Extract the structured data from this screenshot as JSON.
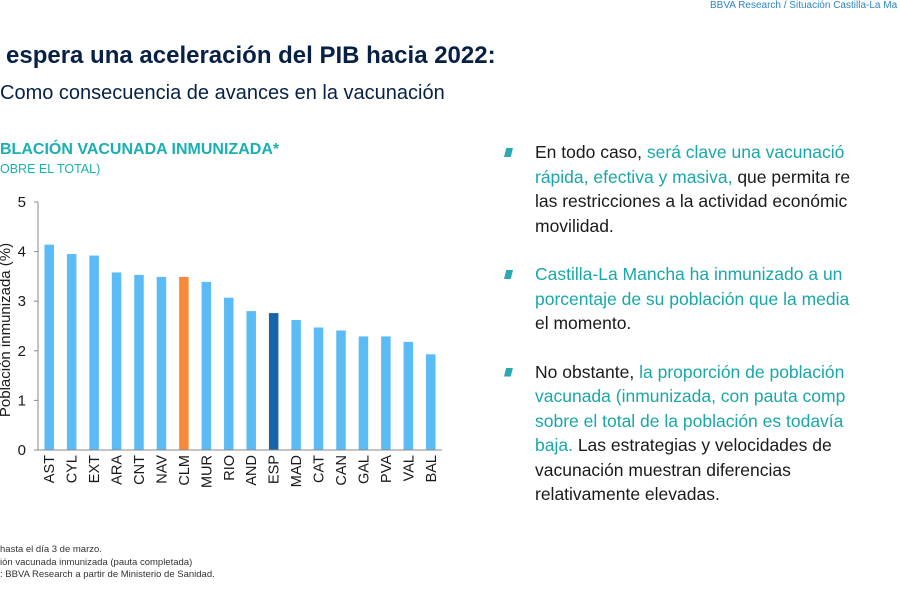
{
  "header": {
    "source": "BBVA Research / Situación Castilla-La Ma"
  },
  "slide": {
    "title": "espera una aceleración del PIB hacia 2022:",
    "subtitle": "Como consecuencia de avances en la vacunación"
  },
  "chart_data": {
    "type": "bar",
    "title": "BLACIÓN VACUNADA INMUNIZADA*",
    "subtitle": "OBRE EL TOTAL)",
    "ylabel": "Población inmunizada (%)",
    "ylim": [
      0,
      5
    ],
    "yticks": [
      0,
      1,
      2,
      3,
      4,
      5
    ],
    "categories": [
      "AST",
      "CYL",
      "EXT",
      "ARA",
      "CNT",
      "NAV",
      "CLM",
      "MUR",
      "RIO",
      "AND",
      "ESP",
      "MAD",
      "CAT",
      "CAN",
      "GAL",
      "PVA",
      "VAL",
      "BAL"
    ],
    "values": [
      4.14,
      3.95,
      3.92,
      3.58,
      3.53,
      3.49,
      3.49,
      3.39,
      3.07,
      2.8,
      2.76,
      2.62,
      2.47,
      2.41,
      2.29,
      2.29,
      2.18,
      1.93
    ],
    "colors": {
      "default": "#5bbcf5",
      "highlight": "#f7893b",
      "reference": "#1565a8"
    },
    "highlight_category": "CLM",
    "reference_category": "ESP",
    "grid": false
  },
  "notes": {
    "line1": "hasta el día 3 de marzo.",
    "line2": "ión vacunada inmunizada (pauta completada)",
    "line3": ": BBVA Research a partir de Ministerio de Sanidad."
  },
  "bullets": [
    {
      "lines": [
        [
          {
            "t": "En todo caso, ",
            "hl": false
          },
          {
            "t": "será clave una vacunació",
            "hl": true
          }
        ],
        [
          {
            "t": "rápida, efectiva y masiva,",
            "hl": true
          },
          {
            "t": " que permita re",
            "hl": false
          }
        ],
        [
          {
            "t": "las restricciones a la actividad económic",
            "hl": false
          }
        ],
        [
          {
            "t": "movilidad.",
            "hl": false
          }
        ]
      ]
    },
    {
      "lines": [
        [
          {
            "t": "Castilla-La Mancha ha inmunizado a un",
            "hl": true
          }
        ],
        [
          {
            "t": "porcentaje de su población que la media",
            "hl": true
          }
        ],
        [
          {
            "t": "el momento.",
            "hl": false
          }
        ]
      ]
    },
    {
      "lines": [
        [
          {
            "t": "No obstante, ",
            "hl": false
          },
          {
            "t": "la proporción de población",
            "hl": true
          }
        ],
        [
          {
            "t": "vacunada (inmunizada, con pauta comp",
            "hl": true
          }
        ],
        [
          {
            "t": "sobre el total de la población es todavía",
            "hl": true
          }
        ],
        [
          {
            "t": "baja.",
            "hl": true
          },
          {
            "t": " Las estrategias y velocidades de",
            "hl": false
          }
        ],
        [
          {
            "t": "vacunación muestran diferencias",
            "hl": false
          }
        ],
        [
          {
            "t": "relativamente elevadas.",
            "hl": false
          }
        ]
      ]
    }
  ]
}
